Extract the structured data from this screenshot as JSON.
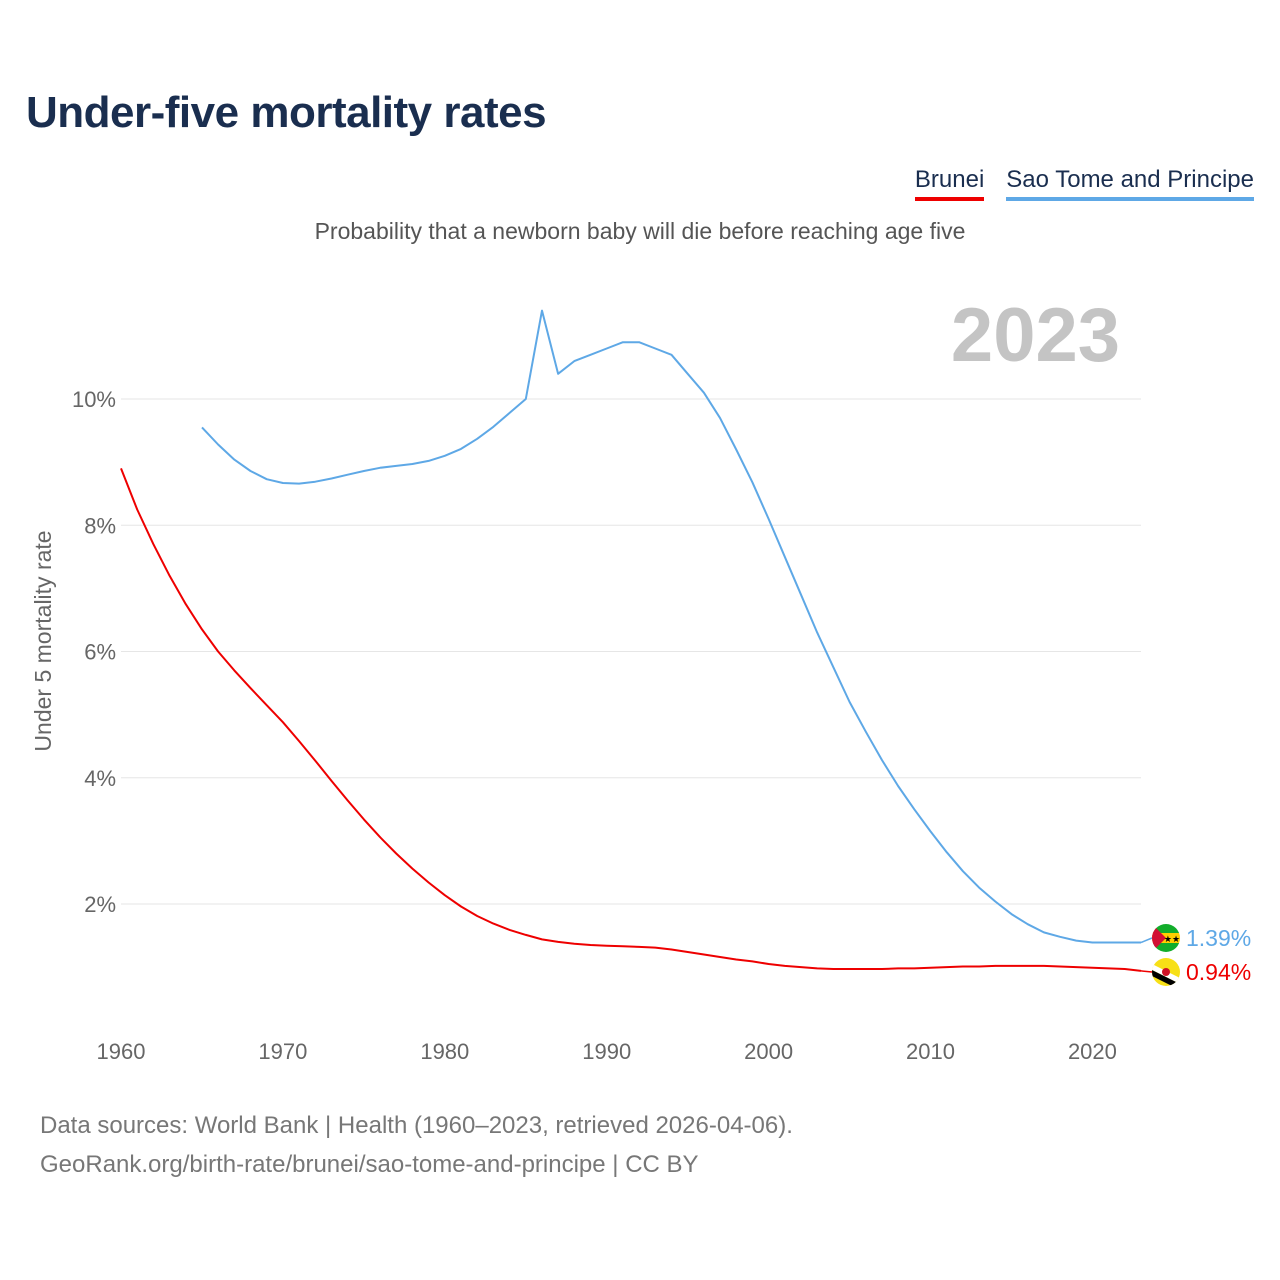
{
  "title": "Under-five mortality rates",
  "subtitle": "Probability that a newborn baby will die before reaching age five",
  "legend": [
    {
      "label": "Brunei",
      "color": "#ee0000"
    },
    {
      "label": "Sao Tome and Principe",
      "color": "#5ea8e6"
    }
  ],
  "footer": {
    "line1": "Data sources: World Bank | Health (1960–2023, retrieved 2026-04-06).",
    "line2": "GeoRank.org/birth-rate/brunei/sao-tome-and-principe | CC BY"
  },
  "chart_data": {
    "type": "line",
    "title": "Under-five mortality rates",
    "subtitle": "Probability that a newborn baby will die before reaching age five",
    "watermark_year": "2023",
    "xlabel": "",
    "ylabel": "Under 5 mortality rate",
    "xlim": [
      1960,
      2023
    ],
    "ylim": [
      0,
      11
    ],
    "x_ticks": [
      1960,
      1970,
      1980,
      1990,
      2000,
      2010,
      2020
    ],
    "y_ticks": [
      2,
      4,
      6,
      8,
      10
    ],
    "y_tick_labels": [
      "2%",
      "4%",
      "6%",
      "8%",
      "10%"
    ],
    "grid": true,
    "series": [
      {
        "name": "Brunei",
        "color": "#ee0000",
        "end_label": "0.94%",
        "flag": "brunei-flag-icon",
        "x": [
          1960,
          1961,
          1962,
          1963,
          1964,
          1965,
          1966,
          1967,
          1968,
          1969,
          1970,
          1971,
          1972,
          1973,
          1974,
          1975,
          1976,
          1977,
          1978,
          1979,
          1980,
          1981,
          1982,
          1983,
          1984,
          1985,
          1986,
          1987,
          1988,
          1989,
          1990,
          1991,
          1992,
          1993,
          1994,
          1995,
          1996,
          1997,
          1998,
          1999,
          2000,
          2001,
          2002,
          2003,
          2004,
          2005,
          2006,
          2007,
          2008,
          2009,
          2010,
          2011,
          2012,
          2013,
          2014,
          2015,
          2016,
          2017,
          2018,
          2019,
          2020,
          2021,
          2022,
          2023
        ],
        "values": [
          8.9,
          8.25,
          7.7,
          7.2,
          6.75,
          6.35,
          6.0,
          5.7,
          5.42,
          5.15,
          4.88,
          4.58,
          4.27,
          3.95,
          3.64,
          3.34,
          3.06,
          2.8,
          2.56,
          2.34,
          2.14,
          1.96,
          1.81,
          1.69,
          1.59,
          1.51,
          1.44,
          1.4,
          1.37,
          1.35,
          1.34,
          1.33,
          1.32,
          1.31,
          1.28,
          1.24,
          1.2,
          1.16,
          1.12,
          1.09,
          1.05,
          1.02,
          1.0,
          0.98,
          0.97,
          0.97,
          0.97,
          0.97,
          0.98,
          0.98,
          0.99,
          1.0,
          1.01,
          1.01,
          1.02,
          1.02,
          1.02,
          1.02,
          1.01,
          1.0,
          0.99,
          0.98,
          0.97,
          0.94
        ]
      },
      {
        "name": "Sao Tome and Principe",
        "color": "#5ea8e6",
        "end_label": "1.39%",
        "flag": "sao-tome-flag-icon",
        "x": [
          1965,
          1966,
          1967,
          1968,
          1969,
          1970,
          1971,
          1972,
          1973,
          1974,
          1975,
          1976,
          1977,
          1978,
          1979,
          1980,
          1981,
          1982,
          1983,
          1984,
          1985,
          1986,
          1987,
          1988,
          1989,
          1990,
          1991,
          1992,
          1993,
          1994,
          1995,
          1996,
          1997,
          1998,
          1999,
          2000,
          2001,
          2002,
          2003,
          2004,
          2005,
          2006,
          2007,
          2008,
          2009,
          2010,
          2011,
          2012,
          2013,
          2014,
          2015,
          2016,
          2017,
          2018,
          2019,
          2020,
          2021,
          2022,
          2023
        ],
        "values": [
          9.55,
          9.28,
          9.04,
          8.86,
          8.73,
          8.67,
          8.66,
          8.69,
          8.74,
          8.8,
          8.86,
          8.91,
          8.94,
          8.97,
          9.02,
          9.1,
          9.21,
          9.37,
          9.56,
          9.78,
          10.0,
          11.4,
          10.4,
          10.6,
          10.7,
          10.8,
          10.9,
          10.9,
          10.8,
          10.7,
          10.4,
          10.1,
          9.7,
          9.2,
          8.68,
          8.1,
          7.5,
          6.9,
          6.3,
          5.75,
          5.2,
          4.73,
          4.28,
          3.87,
          3.5,
          3.15,
          2.82,
          2.52,
          2.26,
          2.04,
          1.84,
          1.68,
          1.55,
          1.48,
          1.42,
          1.39,
          1.39,
          1.39,
          1.39
        ]
      }
    ]
  }
}
